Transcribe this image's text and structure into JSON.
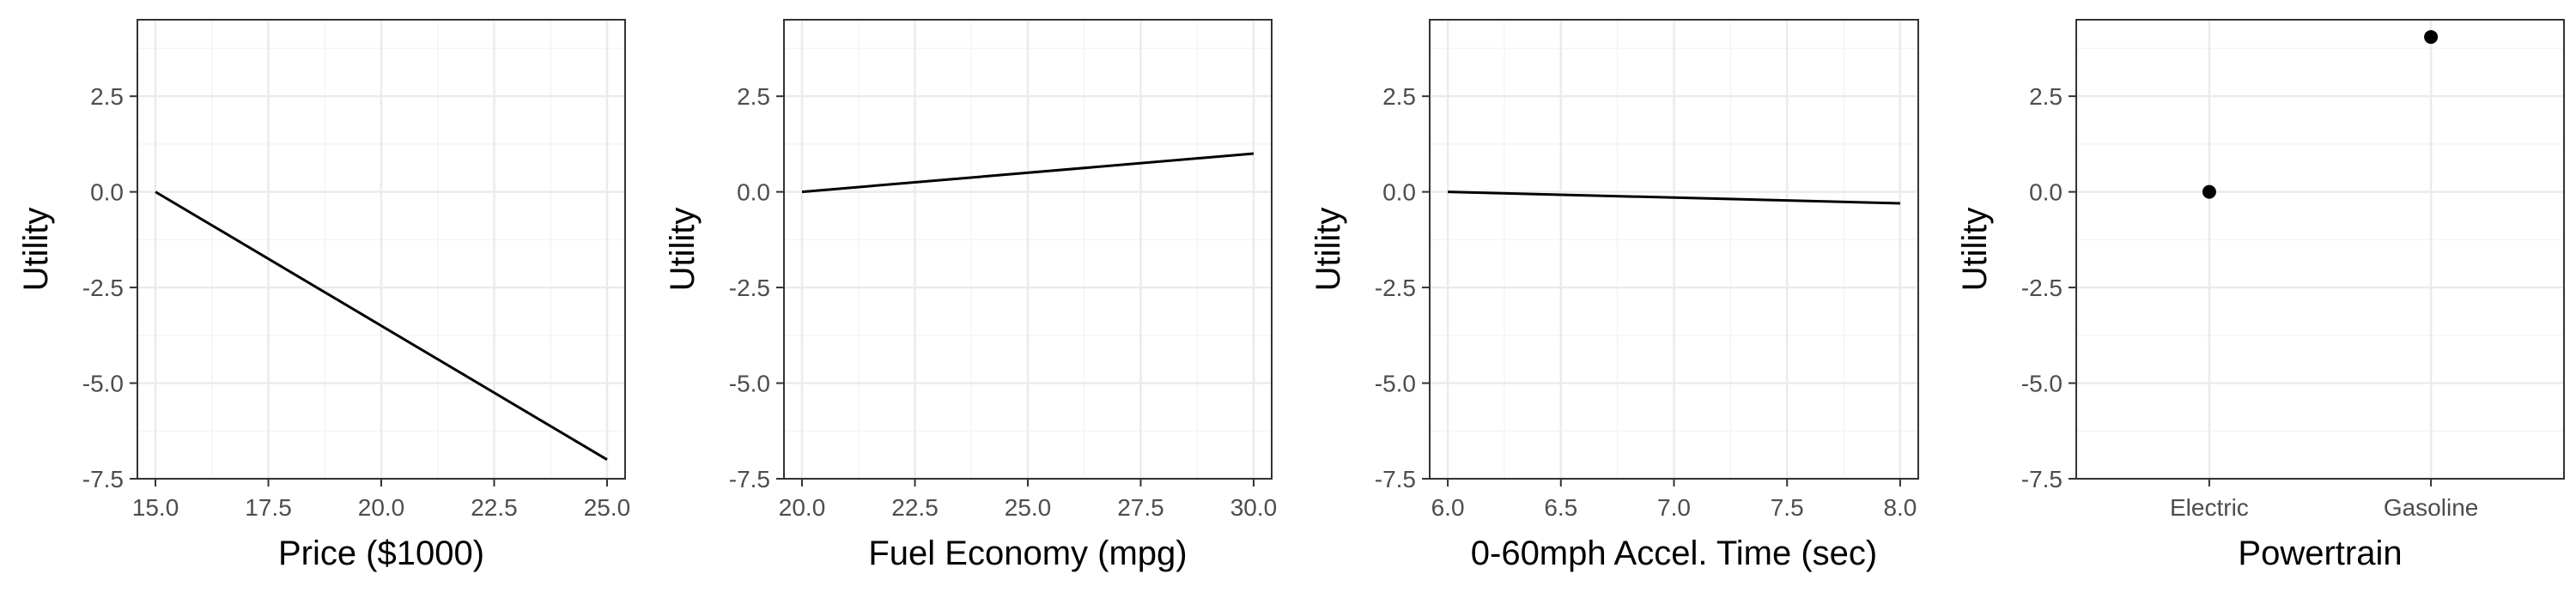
{
  "chart_data": [
    {
      "type": "line",
      "xlabel": "Price ($1000)",
      "ylabel": "Utility",
      "xlim": [
        14.6,
        25.4
      ],
      "ylim": [
        -7.5,
        4.5
      ],
      "xticks": [
        15.0,
        17.5,
        20.0,
        22.5,
        25.0
      ],
      "xtick_labels": [
        "15.0",
        "17.5",
        "20.0",
        "22.5",
        "25.0"
      ],
      "yticks": [
        2.5,
        0.0,
        -2.5,
        -5.0,
        -7.5
      ],
      "ytick_labels": [
        "2.5",
        "0.0",
        "-2.5",
        "-5.0",
        "-7.5"
      ],
      "x": [
        15.0,
        25.0
      ],
      "y": [
        0.0,
        -7.0
      ],
      "grid": true
    },
    {
      "type": "line",
      "xlabel": "Fuel Economy (mpg)",
      "ylabel": "Utility",
      "xlim": [
        19.6,
        30.4
      ],
      "ylim": [
        -7.5,
        4.5
      ],
      "xticks": [
        20.0,
        22.5,
        25.0,
        27.5,
        30.0
      ],
      "xtick_labels": [
        "20.0",
        "22.5",
        "25.0",
        "27.5",
        "30.0"
      ],
      "yticks": [
        2.5,
        0.0,
        -2.5,
        -5.0,
        -7.5
      ],
      "ytick_labels": [
        "2.5",
        "0.0",
        "-2.5",
        "-5.0",
        "-7.5"
      ],
      "x": [
        20.0,
        30.0
      ],
      "y": [
        0.0,
        1.0
      ],
      "grid": true
    },
    {
      "type": "line",
      "xlabel": "0-60mph Accel. Time (sec)",
      "ylabel": "Utility",
      "xlim": [
        5.92,
        8.08
      ],
      "ylim": [
        -7.5,
        4.5
      ],
      "xticks": [
        6.0,
        6.5,
        7.0,
        7.5,
        8.0
      ],
      "xtick_labels": [
        "6.0",
        "6.5",
        "7.0",
        "7.5",
        "8.0"
      ],
      "yticks": [
        2.5,
        0.0,
        -2.5,
        -5.0,
        -7.5
      ],
      "ytick_labels": [
        "2.5",
        "0.0",
        "-2.5",
        "-5.0",
        "-7.5"
      ],
      "x": [
        6.0,
        8.0
      ],
      "y": [
        0.0,
        -0.3
      ],
      "grid": true
    },
    {
      "type": "scatter",
      "xlabel": "Powertrain",
      "ylabel": "Utility",
      "categories": [
        "Electric",
        "Gasoline"
      ],
      "ylim": [
        -7.5,
        4.5
      ],
      "yticks": [
        2.5,
        0.0,
        -2.5,
        -5.0,
        -7.5
      ],
      "ytick_labels": [
        "2.5",
        "0.0",
        "-2.5",
        "-5.0",
        "-7.5"
      ],
      "values": [
        0.0,
        4.05
      ],
      "grid": true
    }
  ],
  "colors": {
    "panel_border": "#333333",
    "grid_major": "#ebebeb",
    "grid_minor": "#f4f4f4",
    "data": "#000000"
  }
}
